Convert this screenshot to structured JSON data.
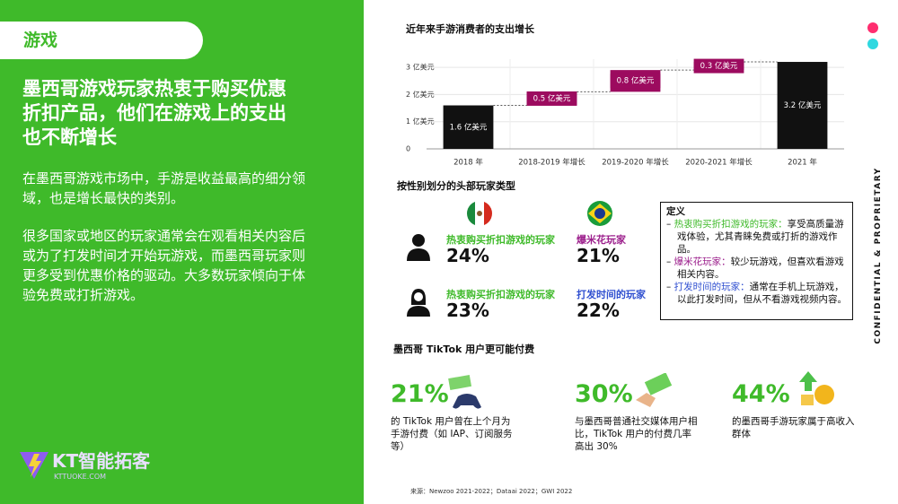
{
  "section": "游戏",
  "headline": [
    "墨西哥游戏玩家热衷于购买优惠",
    "折扣产品，他们在游戏上的支出",
    "也不断增长"
  ],
  "paragraphs": [
    [
      "在墨西哥游戏市场中，手游是收益最高的细分领",
      "域，也是增长最快的类别。"
    ],
    [
      "很多国家或地区的玩家通常会在观看相关内容后",
      "或为了打发时间才开始玩游戏，而墨西哥玩家则",
      "更多受到优惠价格的驱动。大多数玩家倾向于体",
      "验免费或打折游戏。"
    ]
  ],
  "logo": {
    "name": "KT智能拓客",
    "url": "KTTUOKE.COM"
  },
  "chart_data": {
    "type": "waterfall",
    "title": "近年来手游消费者的支出增长",
    "categories": [
      "2018 年",
      "2018-2019 年增长",
      "2019-2020 年增长",
      "2020-2021 年增长",
      "2021 年"
    ],
    "values": [
      1.6,
      0.5,
      0.8,
      0.3,
      3.2
    ],
    "value_labels": [
      "1.6 亿美元",
      "0.5 亿美元",
      "0.8 亿美元",
      "0.3 亿美元",
      "3.2 亿美元"
    ],
    "total_color": "#111111",
    "increase_color": "#9c0b5f",
    "ylim": [
      0,
      3.3
    ],
    "yticks": [
      0,
      {
        "value": 1,
        "label": "1 亿美元"
      },
      {
        "value": 2,
        "label": "2 亿美元"
      },
      {
        "value": 3,
        "label": "3 亿美元"
      }
    ],
    "grid": true
  },
  "gender": {
    "title": "按性别划分的头部玩家类型",
    "rows": [
      [
        {
          "label": "热衷购买折扣游戏的玩家",
          "value": "24%"
        },
        {
          "label": "爆米花玩家",
          "value": "21%"
        }
      ],
      [
        {
          "label": "热衷购买折扣游戏的玩家",
          "value": "23%"
        },
        {
          "label": "打发时间的玩家",
          "value": "22%"
        }
      ]
    ]
  },
  "definitions": {
    "title": "定义",
    "items": [
      {
        "term": "热衷购买折扣游戏的玩家：",
        "text": "享受高质量游戏体验，尤其青睐免费或打折的游戏作品。"
      },
      {
        "term": "爆米花玩家：",
        "text": "较少玩游戏，但喜欢看游戏相关内容。"
      },
      {
        "term": "打发时间的玩家：",
        "text": "通常在手机上玩游戏，以此打发时间，但从不看游戏视频内容。"
      }
    ]
  },
  "tiktok": {
    "title": "墨西哥 TikTok 用户更可能付费",
    "stats": [
      {
        "value": "21%",
        "text": "的 TikTok 用户曾在上个月为手游付费（如 IAP、订阅服务等）"
      },
      {
        "value": "30%",
        "text": "与墨西哥普通社交媒体用户相比，TikTok 用户的付费几率高出 30%"
      },
      {
        "value": "44%",
        "text": "的墨西哥手游玩家属于高收入群体"
      }
    ]
  },
  "confidential": "CONFIDENTIAL & PROPRIETARY",
  "source": "来源：Newzoo 2021-2022；Dataai 2022；GWI 2022"
}
